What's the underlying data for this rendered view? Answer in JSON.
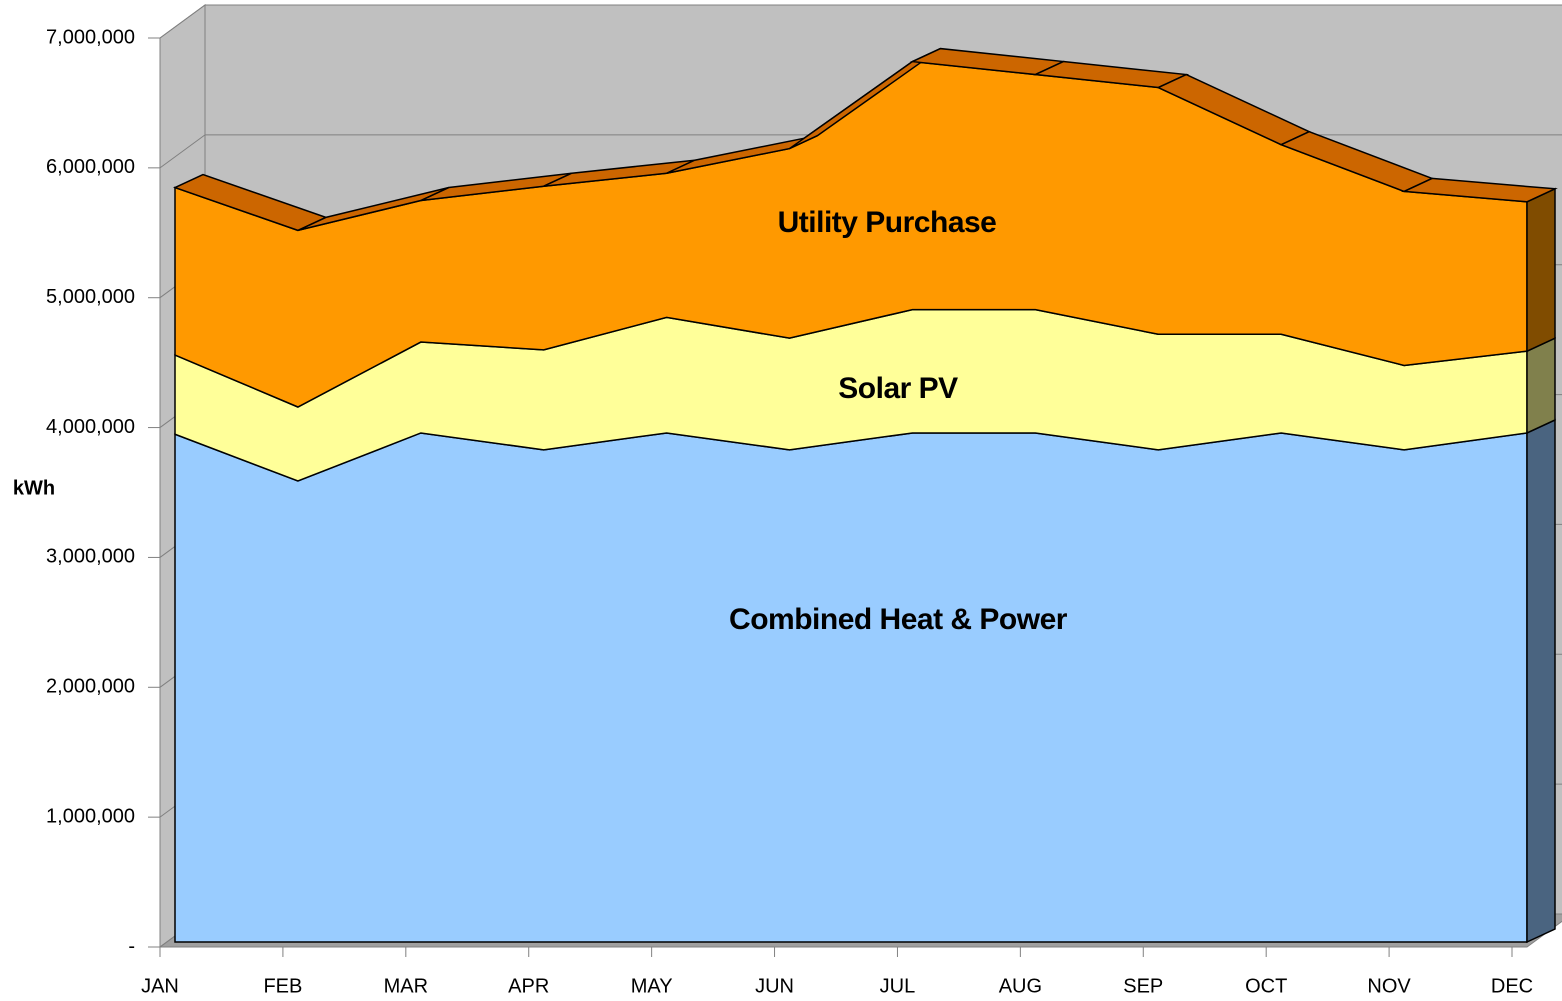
{
  "chart_data": {
    "type": "area3d",
    "y_label": "kWh",
    "categories": [
      "JAN",
      "FEB",
      "MAR",
      "APR",
      "MAY",
      "JUN",
      "JUL",
      "AUG",
      "SEP",
      "OCT",
      "NOV",
      "DEC"
    ],
    "series": [
      {
        "name": "Combined Heat & Power",
        "color": "#99ccff",
        "side_color": "#4a6480",
        "values": [
          3910000,
          3550000,
          3920000,
          3790000,
          3920000,
          3790000,
          3920000,
          3920000,
          3790000,
          3920000,
          3790000,
          3920000
        ]
      },
      {
        "name": "Solar PV",
        "color": "#ffff99",
        "side_color": "#80804c",
        "values": [
          610000,
          570000,
          700000,
          770000,
          890000,
          860000,
          950000,
          950000,
          890000,
          760000,
          650000,
          630000
        ]
      },
      {
        "name": "Utility Purchase",
        "color": "#ff9900",
        "side_color": "#804c00",
        "top_color": "#cc6600",
        "values": [
          1290000,
          1360000,
          1090000,
          1260000,
          1110000,
          1460000,
          1910000,
          1810000,
          1900000,
          1460000,
          1340000,
          1150000
        ]
      }
    ],
    "stacked": true,
    "ylim": [
      0,
      7000000
    ],
    "yticks": [
      {
        "value": 0,
        "label": "-"
      },
      {
        "value": 1000000,
        "label": "1,000,000"
      },
      {
        "value": 2000000,
        "label": "2,000,000"
      },
      {
        "value": 3000000,
        "label": "3,000,000"
      },
      {
        "value": 4000000,
        "label": "4,000,000"
      },
      {
        "value": 5000000,
        "label": "5,000,000"
      },
      {
        "value": 6000000,
        "label": "6,000,000"
      },
      {
        "value": 7000000,
        "label": "7,000,000"
      }
    ],
    "grid": true
  }
}
